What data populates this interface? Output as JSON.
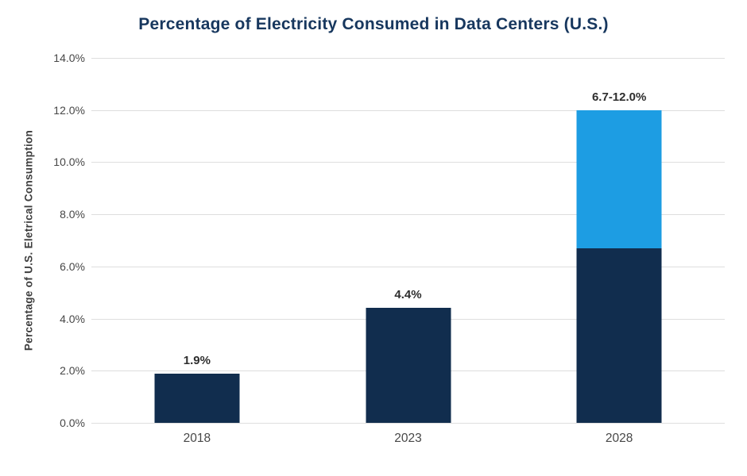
{
  "chart_data": {
    "type": "bar",
    "stacked": true,
    "title": "Percentage of Electricity Consumed in Data Centers (U.S.)",
    "ylabel": "Percentage of U.S. Eletrical Consumption",
    "xlabel": "",
    "categories": [
      "2018",
      "2023",
      "2028"
    ],
    "series": [
      {
        "color": "#112d4e",
        "values": [
          1.9,
          4.4,
          6.7
        ]
      },
      {
        "color": "#1d9de3",
        "values": [
          0,
          0,
          5.3
        ]
      }
    ],
    "bar_labels": [
      "1.9%",
      "4.4%",
      "6.7-12.0%"
    ],
    "ylim": [
      0,
      14
    ],
    "grid": true,
    "legend": "none",
    "yticks": [
      {
        "value": 0,
        "label": "0.0%"
      },
      {
        "value": 2,
        "label": "2.0%"
      },
      {
        "value": 4,
        "label": "4.0%"
      },
      {
        "value": 6,
        "label": "6.0%"
      },
      {
        "value": 8,
        "label": "8.0%"
      },
      {
        "value": 10,
        "label": "10.0%"
      },
      {
        "value": 12,
        "label": "12.0%"
      },
      {
        "value": 14,
        "label": "14.0%"
      }
    ],
    "colors": {
      "navy": "#112d4e",
      "light_blue": "#1d9de3",
      "title_text": "#17375e",
      "gridline": "#dedede",
      "axis_text": "#474747"
    }
  }
}
